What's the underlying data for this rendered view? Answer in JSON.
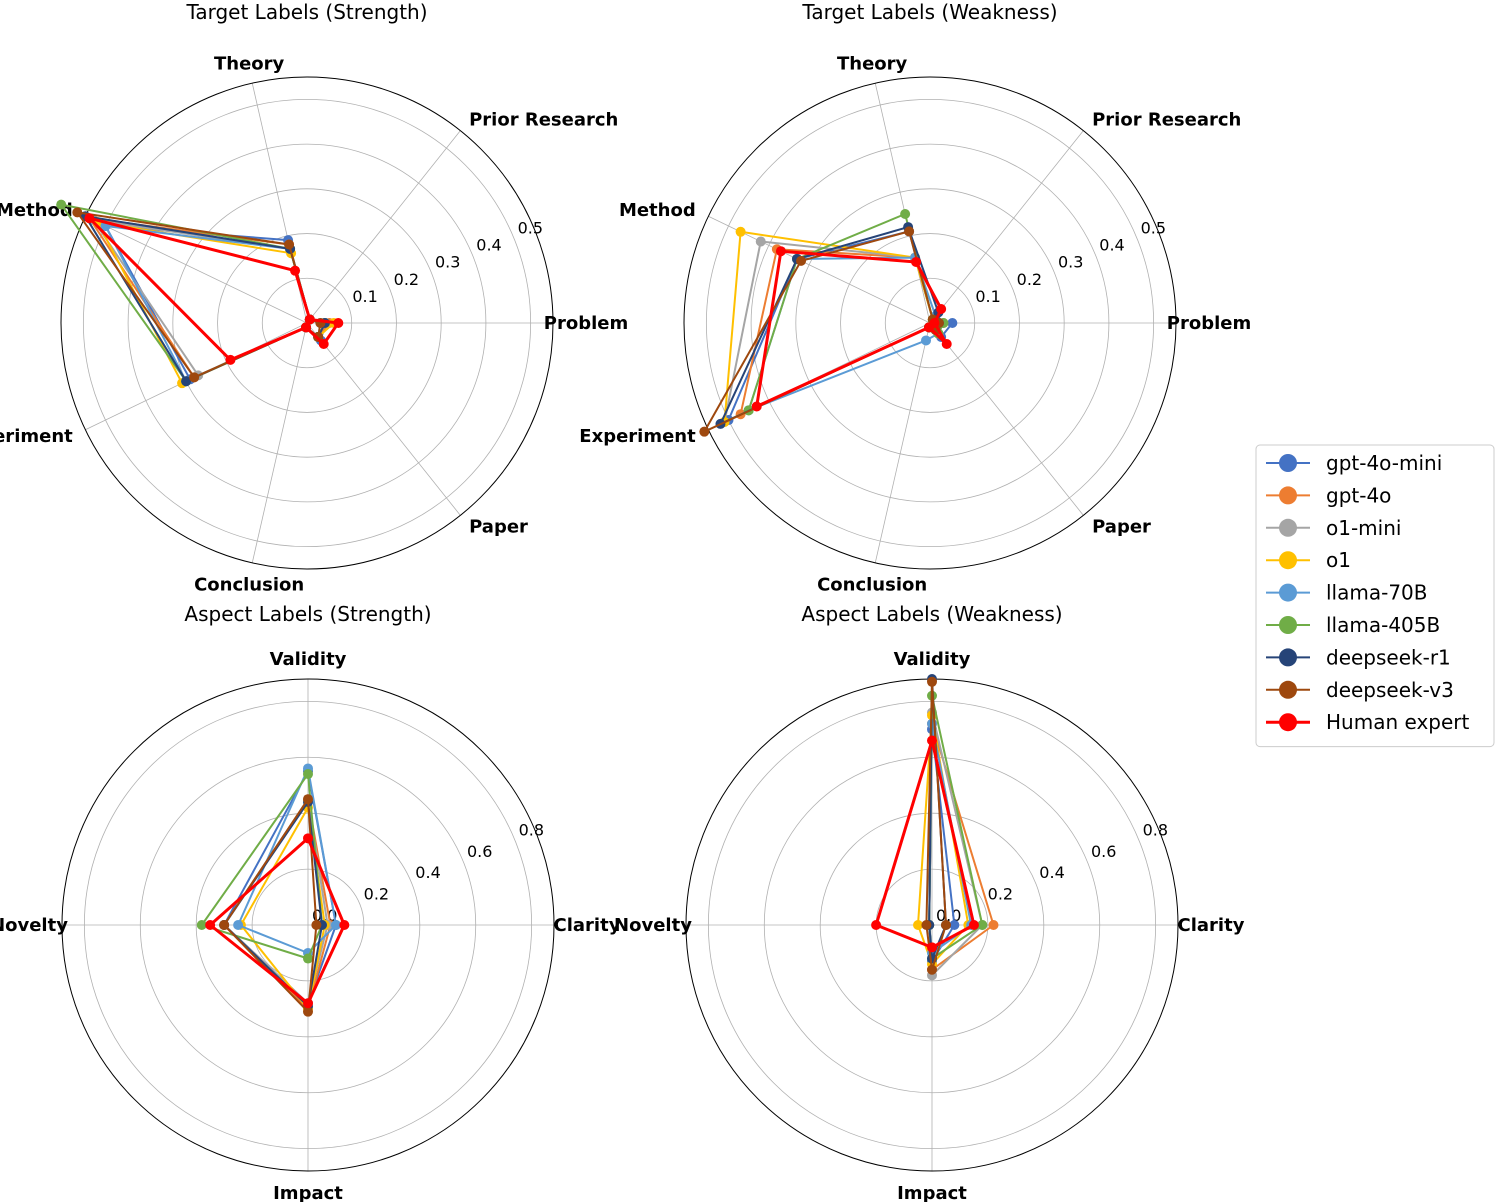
{
  "colors": {
    "gpt-4o-mini": "#4472C4",
    "gpt-4o": "#ED7D31",
    "o1-mini": "#A5A5A5",
    "o1": "#FFC000",
    "llama-70B": "#5B9BD5",
    "llama-405B": "#70AD47",
    "deepseek-r1": "#264478",
    "deepseek-v3": "#9E480E",
    "Human expert": "#FF0000"
  },
  "legend": {
    "items": [
      "gpt-4o-mini",
      "gpt-4o",
      "o1-mini",
      "o1",
      "llama-70B",
      "llama-405B",
      "deepseek-r1",
      "deepseek-v3",
      "Human expert"
    ]
  },
  "chart_data": [
    {
      "type": "radar",
      "title": "Target Labels (Strength)",
      "axes": [
        "Problem",
        "Prior Research",
        "Theory",
        "Method",
        "Experiment",
        "Conclusion",
        "Paper"
      ],
      "rmax": 0.55,
      "ticks": [
        0.1,
        0.2,
        0.3,
        0.4,
        0.5
      ],
      "tick_labels": [
        "0.1",
        "0.2",
        "0.3",
        "0.4",
        "0.5"
      ],
      "series": [
        {
          "name": "gpt-4o-mini",
          "values": [
            0.04,
            0.01,
            0.19,
            0.5,
            0.29,
            0.01,
            0.05
          ]
        },
        {
          "name": "gpt-4o",
          "values": [
            0.05,
            0.01,
            0.18,
            0.54,
            0.28,
            0.01,
            0.04
          ]
        },
        {
          "name": "o1-mini",
          "values": [
            0.04,
            0.01,
            0.17,
            0.53,
            0.27,
            0.01,
            0.04
          ]
        },
        {
          "name": "o1",
          "values": [
            0.06,
            0.01,
            0.16,
            0.52,
            0.31,
            0.01,
            0.04
          ]
        },
        {
          "name": "llama-70B",
          "values": [
            0.03,
            0.01,
            0.17,
            0.5,
            0.3,
            0.01,
            0.04
          ]
        },
        {
          "name": "llama-405B",
          "values": [
            0.04,
            0.01,
            0.17,
            0.61,
            0.3,
            0.01,
            0.04
          ]
        },
        {
          "name": "deepseek-r1",
          "values": [
            0.04,
            0.01,
            0.17,
            0.55,
            0.3,
            0.01,
            0.04
          ]
        },
        {
          "name": "deepseek-v3",
          "values": [
            0.03,
            0.01,
            0.18,
            0.57,
            0.28,
            0.01,
            0.04
          ]
        },
        {
          "name": "Human expert",
          "values": [
            0.07,
            0.01,
            0.12,
            0.54,
            0.19,
            0.01,
            0.06
          ]
        }
      ]
    },
    {
      "type": "radar",
      "title": "Target Labels (Weakness)",
      "axes": [
        "Problem",
        "Prior Research",
        "Theory",
        "Method",
        "Experiment",
        "Conclusion",
        "Paper"
      ],
      "rmax": 0.55,
      "ticks": [
        0.1,
        0.2,
        0.3,
        0.4,
        0.5
      ],
      "tick_labels": [
        "0.1",
        "0.2",
        "0.3",
        "0.4",
        "0.5"
      ],
      "series": [
        {
          "name": "gpt-4o-mini",
          "values": [
            0.05,
            0.01,
            0.21,
            0.33,
            0.5,
            0.01,
            0.04
          ]
        },
        {
          "name": "gpt-4o",
          "values": [
            0.03,
            0.01,
            0.15,
            0.38,
            0.47,
            0.01,
            0.03
          ]
        },
        {
          "name": "o1-mini",
          "values": [
            0.02,
            0.01,
            0.15,
            0.42,
            0.51,
            0.01,
            0.03
          ]
        },
        {
          "name": "o1",
          "values": [
            0.02,
            0.01,
            0.15,
            0.47,
            0.51,
            0.01,
            0.03
          ]
        },
        {
          "name": "llama-70B",
          "values": [
            0.02,
            0.02,
            0.15,
            0.33,
            0.45,
            0.04,
            0.03
          ]
        },
        {
          "name": "llama-405B",
          "values": [
            0.03,
            0.01,
            0.25,
            0.33,
            0.45,
            0.01,
            0.03
          ]
        },
        {
          "name": "deepseek-r1",
          "values": [
            0.02,
            0.03,
            0.22,
            0.33,
            0.52,
            0.01,
            0.02
          ]
        },
        {
          "name": "deepseek-v3",
          "values": [
            0.02,
            0.01,
            0.21,
            0.32,
            0.56,
            0.01,
            0.02
          ]
        },
        {
          "name": "Human expert",
          "values": [
            0.01,
            0.04,
            0.14,
            0.37,
            0.43,
            0.01,
            0.06
          ]
        }
      ]
    },
    {
      "type": "radar",
      "title": "Aspect Labels (Strength)",
      "axes": [
        "Clarity",
        "Validity",
        "Novelty",
        "Impact"
      ],
      "rmax": 0.88,
      "ticks": [
        0.0,
        0.2,
        0.4,
        0.6,
        0.8
      ],
      "tick_labels": [
        "0.0",
        "0.2",
        "0.4",
        "0.6",
        "0.8"
      ],
      "series": [
        {
          "name": "gpt-4o-mini",
          "values": [
            0.1,
            0.55,
            0.3,
            0.28
          ]
        },
        {
          "name": "gpt-4o",
          "values": [
            0.08,
            0.45,
            0.3,
            0.3
          ]
        },
        {
          "name": "o1-mini",
          "values": [
            0.07,
            0.45,
            0.3,
            0.28
          ]
        },
        {
          "name": "o1",
          "values": [
            0.06,
            0.42,
            0.24,
            0.3
          ]
        },
        {
          "name": "llama-70B",
          "values": [
            0.1,
            0.56,
            0.25,
            0.1
          ]
        },
        {
          "name": "llama-405B",
          "values": [
            0.05,
            0.54,
            0.38,
            0.12
          ]
        },
        {
          "name": "deepseek-r1",
          "values": [
            0.05,
            0.44,
            0.3,
            0.29
          ]
        },
        {
          "name": "deepseek-v3",
          "values": [
            0.03,
            0.45,
            0.3,
            0.31
          ]
        },
        {
          "name": "Human expert",
          "values": [
            0.13,
            0.31,
            0.35,
            0.28
          ]
        }
      ]
    },
    {
      "type": "radar",
      "title": "Aspect Labels (Weakness)",
      "axes": [
        "Clarity",
        "Validity",
        "Novelty",
        "Impact"
      ],
      "rmax": 0.88,
      "ticks": [
        0.0,
        0.2,
        0.4,
        0.6,
        0.8
      ],
      "tick_labels": [
        "0.0",
        "0.2",
        "0.4",
        "0.6",
        "0.8"
      ],
      "series": [
        {
          "name": "gpt-4o-mini",
          "values": [
            0.08,
            0.7,
            0.01,
            0.13
          ]
        },
        {
          "name": "gpt-4o",
          "values": [
            0.22,
            0.72,
            0.01,
            0.16
          ]
        },
        {
          "name": "o1-mini",
          "values": [
            0.18,
            0.76,
            0.01,
            0.18
          ]
        },
        {
          "name": "o1",
          "values": [
            0.13,
            0.75,
            0.05,
            0.14
          ]
        },
        {
          "name": "llama-70B",
          "values": [
            0.14,
            0.72,
            0.01,
            0.1
          ]
        },
        {
          "name": "llama-405B",
          "values": [
            0.18,
            0.82,
            0.01,
            0.12
          ]
        },
        {
          "name": "deepseek-r1",
          "values": [
            0.05,
            0.88,
            0.01,
            0.12
          ]
        },
        {
          "name": "deepseek-v3",
          "values": [
            0.05,
            0.87,
            0.02,
            0.16
          ]
        },
        {
          "name": "Human expert",
          "values": [
            0.15,
            0.66,
            0.2,
            0.08
          ]
        }
      ]
    }
  ]
}
